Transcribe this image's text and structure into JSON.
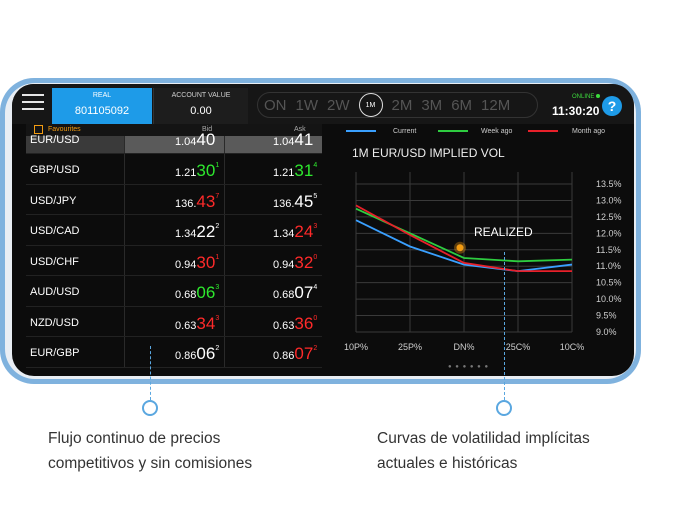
{
  "topbar": {
    "real_label": "REAL",
    "real_value": "801105092",
    "account_value_label": "ACCOUNT VALUE",
    "account_value": "0.00",
    "periods": [
      "ON",
      "1W",
      "2W",
      "1M",
      "2M",
      "3M",
      "6M",
      "12M"
    ],
    "active_period": "1M",
    "online_label": "ONLINE",
    "clock": "11:30:20",
    "help_label": "?"
  },
  "favourites": {
    "label": "Favourites",
    "bid_header": "Bid",
    "ask_header": "Ask"
  },
  "quotes": [
    {
      "pair": "EUR/USD",
      "bid_base": "1.04",
      "bid_big": "40",
      "bid_sup": "",
      "ask_base": "1.04",
      "ask_big": "41",
      "ask_sup": "",
      "bid_color": "#ffffff",
      "ask_color": "#ffffff"
    },
    {
      "pair": "GBP/USD",
      "bid_base": "1.21",
      "bid_big": "30",
      "bid_sup": "1",
      "ask_base": "1.21",
      "ask_big": "31",
      "ask_sup": "4",
      "bid_color": "#2ee82e",
      "ask_color": "#2ee82e"
    },
    {
      "pair": "USD/JPY",
      "bid_base": "136.",
      "bid_big": "43",
      "bid_sup": "7",
      "ask_base": "136.",
      "ask_big": "45",
      "ask_sup": "5",
      "bid_color": "#ff2a2a",
      "ask_color": "#ffffff"
    },
    {
      "pair": "USD/CAD",
      "bid_base": "1.34",
      "bid_big": "22",
      "bid_sup": "2",
      "ask_base": "1.34",
      "ask_big": "24",
      "ask_sup": "3",
      "bid_color": "#ffffff",
      "ask_color": "#ff2a2a"
    },
    {
      "pair": "USD/CHF",
      "bid_base": "0.94",
      "bid_big": "30",
      "bid_sup": "1",
      "ask_base": "0.94",
      "ask_big": "32",
      "ask_sup": "0",
      "bid_color": "#ff2a2a",
      "ask_color": "#ff2a2a"
    },
    {
      "pair": "AUD/USD",
      "bid_base": "0.68",
      "bid_big": "06",
      "bid_sup": "3",
      "ask_base": "0.68",
      "ask_big": "07",
      "ask_sup": "4",
      "bid_color": "#2ee82e",
      "ask_color": "#ffffff"
    },
    {
      "pair": "NZD/USD",
      "bid_base": "0.63",
      "bid_big": "34",
      "bid_sup": "3",
      "ask_base": "0.63",
      "ask_big": "36",
      "ask_sup": "0",
      "bid_color": "#ff2a2a",
      "ask_color": "#ff2a2a"
    },
    {
      "pair": "EUR/GBP",
      "bid_base": "0.86",
      "bid_big": "06",
      "bid_sup": "2",
      "ask_base": "0.86",
      "ask_big": "07",
      "ask_sup": "2",
      "bid_color": "#ffffff",
      "ask_color": "#ff2a2a"
    }
  ],
  "chart_data": {
    "type": "line",
    "title": "1M EUR/USD IMPLIED VOL",
    "categories": [
      "10P%",
      "25P%",
      "DN%",
      "25C%",
      "10C%"
    ],
    "y_ticks": [
      "13.5%",
      "13.0%",
      "12.5%",
      "12.0%",
      "11.5%",
      "11.0%",
      "10.5%",
      "10.0%",
      "9.5%",
      "9.0%"
    ],
    "ylim": [
      9.0,
      13.5
    ],
    "grid": true,
    "legend_position": "top",
    "annotation": "REALIZED",
    "annotation_point": {
      "x": 2,
      "y": 11.5
    },
    "series": [
      {
        "name": "Current",
        "color": "#3aa0ff",
        "values": [
          12.4,
          11.6,
          11.05,
          10.85,
          11.05
        ]
      },
      {
        "name": "Week ago",
        "color": "#2ecc40",
        "values": [
          12.75,
          12.0,
          11.25,
          11.15,
          11.2
        ]
      },
      {
        "name": "Month ago",
        "color": "#e8202a",
        "values": [
          12.85,
          11.95,
          11.1,
          10.85,
          10.85
        ]
      }
    ]
  },
  "callouts": {
    "left": "Flujo continuo de precios\ncompetitivos y sin comisiones",
    "right": "Curvas de volatilidad implícitas\nactuales e históricas"
  }
}
